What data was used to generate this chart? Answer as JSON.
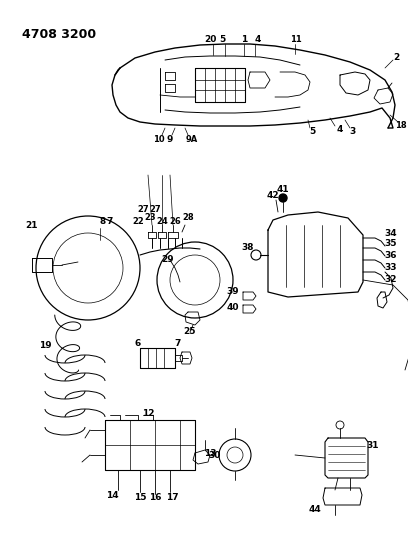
{
  "title": "4708 3200",
  "bg_color": "#ffffff",
  "lc": "#000000",
  "fig_w": 4.08,
  "fig_h": 5.33,
  "dpi": 100
}
